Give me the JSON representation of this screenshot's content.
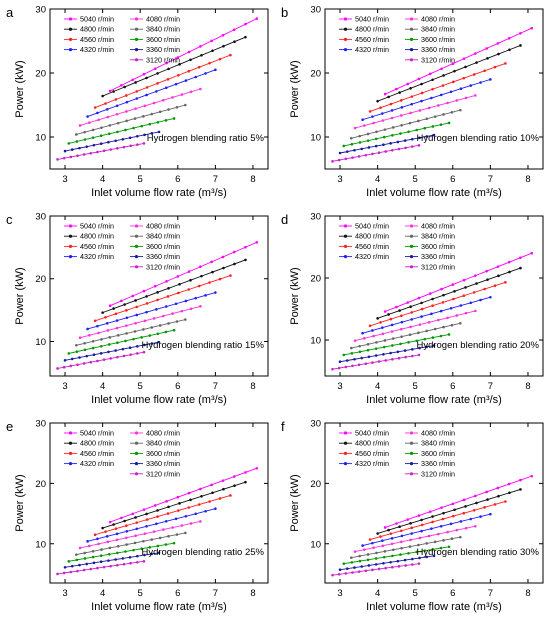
{
  "chart_data": [
    {
      "type": "line",
      "panel_label": "a",
      "annotation": "Hydrogen blending ratio 5%",
      "xlabel": "Inlet volume flow rate (m³/s)",
      "ylabel": "Power (kW)",
      "xlim": [
        2.6,
        8.4
      ],
      "ylim": [
        5,
        30
      ],
      "xticks": [
        "3",
        "4",
        "5",
        "6",
        "7",
        "8"
      ],
      "yticks": [
        "10",
        "20",
        "30"
      ],
      "series": [
        {
          "name": "5040 r/min",
          "color": "#ff00ff",
          "x": [
            4.2,
            8.1
          ],
          "y": [
            17.2,
            28.5
          ]
        },
        {
          "name": "4800 r/min",
          "color": "#111111",
          "x": [
            4.0,
            7.8
          ],
          "y": [
            16.4,
            25.6
          ]
        },
        {
          "name": "4560 r/min",
          "color": "#ff2020",
          "x": [
            3.8,
            7.4
          ],
          "y": [
            14.6,
            22.8
          ]
        },
        {
          "name": "4320 r/min",
          "color": "#2020ff",
          "x": [
            3.6,
            7.0
          ],
          "y": [
            13.2,
            20.5
          ]
        },
        {
          "name": "4080 r/min",
          "color": "#ff33dd",
          "x": [
            3.4,
            6.6
          ],
          "y": [
            11.8,
            17.5
          ]
        },
        {
          "name": "3840 r/min",
          "color": "#666666",
          "x": [
            3.3,
            6.2
          ],
          "y": [
            10.4,
            15.0
          ]
        },
        {
          "name": "3600 r/min",
          "color": "#009900",
          "x": [
            3.1,
            5.9
          ],
          "y": [
            9.0,
            12.9
          ]
        },
        {
          "name": "3360 r/min",
          "color": "#1a1aa0",
          "x": [
            3.0,
            5.5
          ],
          "y": [
            7.8,
            10.8
          ]
        },
        {
          "name": "3120 r/min",
          "color": "#cc22cc",
          "x": [
            2.8,
            5.1
          ],
          "y": [
            6.5,
            9.0
          ]
        }
      ]
    },
    {
      "type": "line",
      "panel_label": "b",
      "annotation": "Hydrogen blending ratio 10%",
      "xlabel": "Inlet volume flow rate (m³/s)",
      "ylabel": "Power (kW)",
      "xlim": [
        2.6,
        8.4
      ],
      "ylim": [
        5,
        30
      ],
      "xticks": [
        "3",
        "4",
        "5",
        "6",
        "7",
        "8"
      ],
      "yticks": [
        "10",
        "20",
        "30"
      ],
      "series": [
        {
          "name": "5040 r/min",
          "color": "#ff00ff",
          "x": [
            4.2,
            8.1
          ],
          "y": [
            16.7,
            27.0
          ]
        },
        {
          "name": "4800 r/min",
          "color": "#111111",
          "x": [
            4.0,
            7.8
          ],
          "y": [
            15.6,
            24.3
          ]
        },
        {
          "name": "4560 r/min",
          "color": "#ff2020",
          "x": [
            3.8,
            7.4
          ],
          "y": [
            14.0,
            21.5
          ]
        },
        {
          "name": "4320 r/min",
          "color": "#2020ff",
          "x": [
            3.6,
            7.0
          ],
          "y": [
            12.7,
            19.0
          ]
        },
        {
          "name": "4080 r/min",
          "color": "#ff33dd",
          "x": [
            3.4,
            6.6
          ],
          "y": [
            11.4,
            16.5
          ]
        },
        {
          "name": "3840 r/min",
          "color": "#666666",
          "x": [
            3.3,
            6.2
          ],
          "y": [
            9.8,
            14.2
          ]
        },
        {
          "name": "3600 r/min",
          "color": "#009900",
          "x": [
            3.1,
            5.9
          ],
          "y": [
            8.6,
            12.2
          ]
        },
        {
          "name": "3360 r/min",
          "color": "#1a1aa0",
          "x": [
            3.0,
            5.5
          ],
          "y": [
            7.5,
            10.3
          ]
        },
        {
          "name": "3120 r/min",
          "color": "#cc22cc",
          "x": [
            2.8,
            5.1
          ],
          "y": [
            6.2,
            8.7
          ]
        }
      ]
    },
    {
      "type": "line",
      "panel_label": "c",
      "annotation": "Hydrogen blending ratio 15%",
      "xlabel": "Inlet volume flow rate (m³/s)",
      "ylabel": "Power (kW)",
      "xlim": [
        2.6,
        8.4
      ],
      "ylim": [
        4.5,
        30
      ],
      "xticks": [
        "3",
        "4",
        "5",
        "6",
        "7",
        "8"
      ],
      "yticks": [
        "10",
        "20",
        "30"
      ],
      "series": [
        {
          "name": "5040 r/min",
          "color": "#ff00ff",
          "x": [
            4.2,
            8.1
          ],
          "y": [
            15.7,
            25.8
          ]
        },
        {
          "name": "4800 r/min",
          "color": "#111111",
          "x": [
            4.0,
            7.8
          ],
          "y": [
            14.6,
            23.0
          ]
        },
        {
          "name": "4560 r/min",
          "color": "#ff2020",
          "x": [
            3.8,
            7.4
          ],
          "y": [
            13.3,
            20.5
          ]
        },
        {
          "name": "4320 r/min",
          "color": "#2020ff",
          "x": [
            3.6,
            7.0
          ],
          "y": [
            12.0,
            17.8
          ]
        },
        {
          "name": "4080 r/min",
          "color": "#ff33dd",
          "x": [
            3.4,
            6.6
          ],
          "y": [
            10.6,
            15.6
          ]
        },
        {
          "name": "3840 r/min",
          "color": "#666666",
          "x": [
            3.3,
            6.2
          ],
          "y": [
            9.4,
            13.5
          ]
        },
        {
          "name": "3600 r/min",
          "color": "#009900",
          "x": [
            3.1,
            5.9
          ],
          "y": [
            8.1,
            11.8
          ]
        },
        {
          "name": "3360 r/min",
          "color": "#1a1aa0",
          "x": [
            3.0,
            5.5
          ],
          "y": [
            7.0,
            9.9
          ]
        },
        {
          "name": "3120 r/min",
          "color": "#cc22cc",
          "x": [
            2.8,
            5.1
          ],
          "y": [
            5.7,
            8.3
          ]
        }
      ]
    },
    {
      "type": "line",
      "panel_label": "d",
      "annotation": "Hydrogen blending ratio 20%",
      "xlabel": "Inlet volume flow rate (m³/s)",
      "ylabel": "Power (kW)",
      "xlim": [
        2.6,
        8.4
      ],
      "ylim": [
        4.2,
        30
      ],
      "xticks": [
        "3",
        "4",
        "5",
        "6",
        "7",
        "8"
      ],
      "yticks": [
        "10",
        "20",
        "30"
      ],
      "series": [
        {
          "name": "5040 r/min",
          "color": "#ff00ff",
          "x": [
            4.2,
            8.1
          ],
          "y": [
            14.6,
            24.0
          ]
        },
        {
          "name": "4800 r/min",
          "color": "#111111",
          "x": [
            4.0,
            7.8
          ],
          "y": [
            13.5,
            21.6
          ]
        },
        {
          "name": "4560 r/min",
          "color": "#ff2020",
          "x": [
            3.8,
            7.4
          ],
          "y": [
            12.3,
            19.3
          ]
        },
        {
          "name": "4320 r/min",
          "color": "#2020ff",
          "x": [
            3.6,
            7.0
          ],
          "y": [
            11.1,
            16.9
          ]
        },
        {
          "name": "4080 r/min",
          "color": "#ff33dd",
          "x": [
            3.4,
            6.6
          ],
          "y": [
            9.9,
            14.7
          ]
        },
        {
          "name": "3840 r/min",
          "color": "#666666",
          "x": [
            3.3,
            6.2
          ],
          "y": [
            8.7,
            12.7
          ]
        },
        {
          "name": "3600 r/min",
          "color": "#009900",
          "x": [
            3.1,
            5.9
          ],
          "y": [
            7.6,
            10.9
          ]
        },
        {
          "name": "3360 r/min",
          "color": "#1a1aa0",
          "x": [
            3.0,
            5.5
          ],
          "y": [
            6.5,
            9.1
          ]
        },
        {
          "name": "3120 r/min",
          "color": "#cc22cc",
          "x": [
            2.8,
            5.1
          ],
          "y": [
            5.3,
            7.6
          ]
        }
      ]
    },
    {
      "type": "line",
      "panel_label": "e",
      "annotation": "Hydrogen blending ratio 25%",
      "xlabel": "Inlet volume flow rate (m³/s)",
      "ylabel": "Power (kW)",
      "xlim": [
        2.6,
        8.4
      ],
      "ylim": [
        3.5,
        30
      ],
      "xticks": [
        "3",
        "4",
        "5",
        "6",
        "7",
        "8"
      ],
      "yticks": [
        "10",
        "20",
        "30"
      ],
      "series": [
        {
          "name": "5040 r/min",
          "color": "#ff00ff",
          "x": [
            4.2,
            8.1
          ],
          "y": [
            13.6,
            22.5
          ]
        },
        {
          "name": "4800 r/min",
          "color": "#111111",
          "x": [
            4.0,
            7.8
          ],
          "y": [
            12.6,
            20.2
          ]
        },
        {
          "name": "4560 r/min",
          "color": "#ff2020",
          "x": [
            3.8,
            7.4
          ],
          "y": [
            11.5,
            18.0
          ]
        },
        {
          "name": "4320 r/min",
          "color": "#2020ff",
          "x": [
            3.6,
            7.0
          ],
          "y": [
            10.4,
            15.8
          ]
        },
        {
          "name": "4080 r/min",
          "color": "#ff33dd",
          "x": [
            3.4,
            6.6
          ],
          "y": [
            9.3,
            13.7
          ]
        },
        {
          "name": "3840 r/min",
          "color": "#666666",
          "x": [
            3.3,
            6.2
          ],
          "y": [
            8.2,
            11.8
          ]
        },
        {
          "name": "3600 r/min",
          "color": "#009900",
          "x": [
            3.1,
            5.9
          ],
          "y": [
            7.1,
            10.1
          ]
        },
        {
          "name": "3360 r/min",
          "color": "#1a1aa0",
          "x": [
            3.0,
            5.5
          ],
          "y": [
            6.1,
            8.5
          ]
        },
        {
          "name": "3120 r/min",
          "color": "#cc22cc",
          "x": [
            2.8,
            5.1
          ],
          "y": [
            5.0,
            7.1
          ]
        }
      ]
    },
    {
      "type": "line",
      "panel_label": "f",
      "annotation": "Hydrogen blending ratio 30%",
      "xlabel": "Inlet volume flow rate (m³/s)",
      "ylabel": "Power (kW)",
      "xlim": [
        2.6,
        8.4
      ],
      "ylim": [
        3.5,
        30
      ],
      "xticks": [
        "3",
        "4",
        "5",
        "6",
        "7",
        "8"
      ],
      "yticks": [
        "10",
        "20",
        "30"
      ],
      "series": [
        {
          "name": "5040 r/min",
          "color": "#ff00ff",
          "x": [
            4.2,
            8.1
          ],
          "y": [
            12.7,
            21.2
          ]
        },
        {
          "name": "4800 r/min",
          "color": "#111111",
          "x": [
            4.0,
            7.8
          ],
          "y": [
            11.7,
            19.0
          ]
        },
        {
          "name": "4560 r/min",
          "color": "#ff2020",
          "x": [
            3.8,
            7.4
          ],
          "y": [
            10.7,
            17.0
          ]
        },
        {
          "name": "4320 r/min",
          "color": "#2020ff",
          "x": [
            3.6,
            7.0
          ],
          "y": [
            9.7,
            14.9
          ]
        },
        {
          "name": "4080 r/min",
          "color": "#ff33dd",
          "x": [
            3.4,
            6.6
          ],
          "y": [
            8.7,
            12.9
          ]
        },
        {
          "name": "3840 r/min",
          "color": "#666666",
          "x": [
            3.3,
            6.2
          ],
          "y": [
            7.7,
            11.1
          ]
        },
        {
          "name": "3600 r/min",
          "color": "#009900",
          "x": [
            3.1,
            5.9
          ],
          "y": [
            6.7,
            9.5
          ]
        },
        {
          "name": "3360 r/min",
          "color": "#1a1aa0",
          "x": [
            3.0,
            5.5
          ],
          "y": [
            5.7,
            8.0
          ]
        },
        {
          "name": "3120 r/min",
          "color": "#cc22cc",
          "x": [
            2.8,
            5.1
          ],
          "y": [
            4.8,
            6.7
          ]
        }
      ]
    }
  ]
}
